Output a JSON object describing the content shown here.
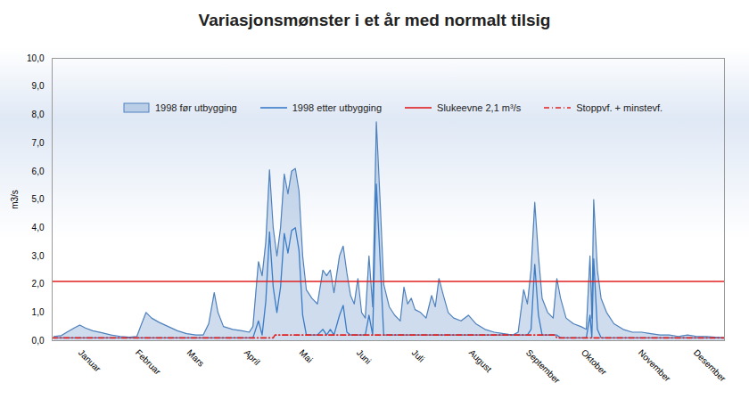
{
  "chart_data": {
    "type": "line",
    "title": "Variasjonsmønster i et år med normalt tilsig",
    "y_label": "m3/s",
    "xlim": [
      0,
      365
    ],
    "xticks": [
      {
        "value": 15,
        "label": "Januar"
      },
      {
        "value": 46,
        "label": "Februar"
      },
      {
        "value": 74,
        "label": "Mars"
      },
      {
        "value": 105,
        "label": "April"
      },
      {
        "value": 135,
        "label": "Mai"
      },
      {
        "value": 166,
        "label": "Juni"
      },
      {
        "value": 196,
        "label": "Juli"
      },
      {
        "value": 227,
        "label": "August"
      },
      {
        "value": 258,
        "label": "September"
      },
      {
        "value": 288,
        "label": "Oktober"
      },
      {
        "value": 319,
        "label": "November"
      },
      {
        "value": 349,
        "label": "Desember"
      }
    ],
    "ylim": [
      0,
      10
    ],
    "yticks": [
      {
        "value": 0,
        "label": "0,0"
      },
      {
        "value": 1,
        "label": "1,0"
      },
      {
        "value": 2,
        "label": "2,0"
      },
      {
        "value": 3,
        "label": "3,0"
      },
      {
        "value": 4,
        "label": "4,0"
      },
      {
        "value": 5,
        "label": "5,0"
      },
      {
        "value": 6,
        "label": "6,0"
      },
      {
        "value": 7,
        "label": "7,0"
      },
      {
        "value": 8,
        "label": "8,0"
      },
      {
        "value": 9,
        "label": "9,0"
      },
      {
        "value": 10,
        "label": "10,0"
      }
    ],
    "grid": false,
    "legend": "top",
    "series": [
      {
        "name": "1998 før utbygging",
        "type": "area",
        "color": "#4f81bd",
        "x": [
          1,
          5,
          8,
          12,
          15,
          18,
          22,
          27,
          32,
          37,
          42,
          46,
          48,
          51,
          54,
          58,
          63,
          68,
          73,
          78,
          82,
          85,
          88,
          90,
          93,
          98,
          103,
          107,
          109,
          112,
          114,
          116,
          118,
          120,
          122,
          124,
          126,
          128,
          130,
          132,
          134,
          136,
          138,
          141,
          144,
          147,
          149,
          151,
          153,
          156,
          158,
          160,
          162,
          164,
          166,
          168,
          170,
          172,
          174,
          176,
          178,
          180,
          183,
          186,
          189,
          191,
          193,
          195,
          197,
          200,
          203,
          206,
          208,
          210,
          212,
          215,
          218,
          222,
          226,
          230,
          235,
          240,
          245,
          250,
          253,
          256,
          258,
          260,
          262,
          264,
          266,
          269,
          272,
          274,
          276,
          279,
          283,
          287,
          290,
          292,
          293,
          294,
          296,
          298,
          301,
          305,
          310,
          315,
          320,
          325,
          330,
          335,
          340,
          345,
          350,
          355,
          360,
          365
        ],
        "values": [
          0.15,
          0.18,
          0.3,
          0.45,
          0.55,
          0.45,
          0.35,
          0.28,
          0.2,
          0.15,
          0.12,
          0.15,
          0.5,
          1.0,
          0.8,
          0.65,
          0.5,
          0.35,
          0.25,
          0.2,
          0.2,
          0.6,
          1.7,
          1.0,
          0.5,
          0.4,
          0.35,
          0.3,
          0.5,
          2.8,
          2.3,
          3.5,
          6.05,
          4.0,
          3.0,
          4.0,
          5.9,
          5.2,
          6.0,
          6.1,
          5.3,
          3.0,
          1.8,
          1.5,
          1.3,
          2.5,
          2.3,
          2.5,
          1.7,
          3.0,
          3.35,
          2.4,
          1.6,
          1.3,
          2.2,
          1.0,
          0.8,
          3.0,
          1.2,
          7.75,
          5.0,
          2.0,
          1.2,
          0.9,
          0.7,
          1.9,
          1.3,
          1.5,
          1.1,
          1.0,
          0.8,
          1.6,
          1.2,
          2.2,
          1.7,
          1.0,
          0.8,
          0.7,
          0.9,
          0.6,
          0.4,
          0.3,
          0.25,
          0.2,
          0.3,
          1.8,
          1.3,
          2.5,
          4.9,
          3.0,
          1.5,
          1.0,
          0.8,
          2.2,
          1.5,
          0.8,
          0.6,
          0.5,
          0.4,
          3.0,
          0.8,
          5.0,
          2.5,
          1.5,
          1.0,
          0.6,
          0.4,
          0.3,
          0.3,
          0.25,
          0.2,
          0.2,
          0.15,
          0.2,
          0.15,
          0.15,
          0.12,
          0.1
        ]
      },
      {
        "name": "1998 etter utbygging",
        "type": "line",
        "color": "#3a7cc7",
        "x": [
          1,
          5,
          8,
          12,
          15,
          18,
          22,
          27,
          32,
          37,
          42,
          46,
          48,
          51,
          54,
          58,
          63,
          68,
          73,
          78,
          82,
          85,
          88,
          90,
          93,
          98,
          103,
          107,
          109,
          112,
          114,
          116,
          118,
          120,
          122,
          124,
          126,
          128,
          130,
          132,
          134,
          136,
          138,
          141,
          144,
          147,
          149,
          151,
          153,
          156,
          158,
          160,
          162,
          164,
          166,
          168,
          170,
          172,
          174,
          176,
          178,
          180,
          183,
          186,
          189,
          191,
          193,
          195,
          197,
          200,
          203,
          206,
          208,
          210,
          212,
          215,
          218,
          222,
          226,
          230,
          235,
          240,
          245,
          250,
          253,
          256,
          258,
          260,
          262,
          264,
          266,
          269,
          272,
          274,
          276,
          279,
          283,
          287,
          290,
          292,
          293,
          294,
          296,
          298,
          301,
          305,
          310,
          315,
          320,
          325,
          330,
          335,
          340,
          345,
          350,
          355,
          360,
          365
        ],
        "values": [
          0.1,
          0.1,
          0.1,
          0.1,
          0.1,
          0.1,
          0.1,
          0.1,
          0.1,
          0.1,
          0.1,
          0.1,
          0.1,
          0.1,
          0.1,
          0.1,
          0.1,
          0.1,
          0.1,
          0.1,
          0.1,
          0.1,
          0.1,
          0.1,
          0.1,
          0.1,
          0.1,
          0.1,
          0.1,
          0.7,
          0.2,
          1.4,
          3.85,
          1.9,
          1.0,
          1.9,
          3.8,
          3.1,
          3.9,
          4.0,
          3.2,
          0.9,
          0.2,
          0.2,
          0.2,
          0.4,
          0.2,
          0.4,
          0.2,
          0.9,
          1.25,
          0.3,
          0.2,
          0.2,
          0.2,
          0.2,
          0.2,
          0.9,
          0.2,
          5.55,
          2.9,
          0.2,
          0.2,
          0.2,
          0.2,
          0.2,
          0.2,
          0.2,
          0.2,
          0.2,
          0.2,
          0.2,
          0.2,
          0.2,
          0.2,
          0.2,
          0.2,
          0.2,
          0.2,
          0.2,
          0.2,
          0.2,
          0.2,
          0.2,
          0.2,
          0.2,
          0.2,
          0.4,
          2.7,
          0.9,
          0.2,
          0.2,
          0.2,
          0.2,
          0.1,
          0.1,
          0.1,
          0.1,
          0.1,
          0.9,
          0.1,
          2.9,
          0.4,
          0.1,
          0.1,
          0.1,
          0.1,
          0.1,
          0.1,
          0.1,
          0.1,
          0.1,
          0.1,
          0.1,
          0.1,
          0.1,
          0.1,
          0.1
        ]
      },
      {
        "name": "Slukeevne 2,1 m³/s",
        "type": "line",
        "color": "#e02020",
        "line_style": "solid",
        "x": [
          0,
          365
        ],
        "values": [
          2.1,
          2.1
        ]
      },
      {
        "name": "Stoppvf. + minstevf.",
        "type": "line",
        "color": "#e02020",
        "line_style": "dashed",
        "x": [
          0,
          120,
          121,
          273,
          274,
          365
        ],
        "values": [
          0.1,
          0.1,
          0.2,
          0.2,
          0.1,
          0.1
        ]
      }
    ]
  }
}
